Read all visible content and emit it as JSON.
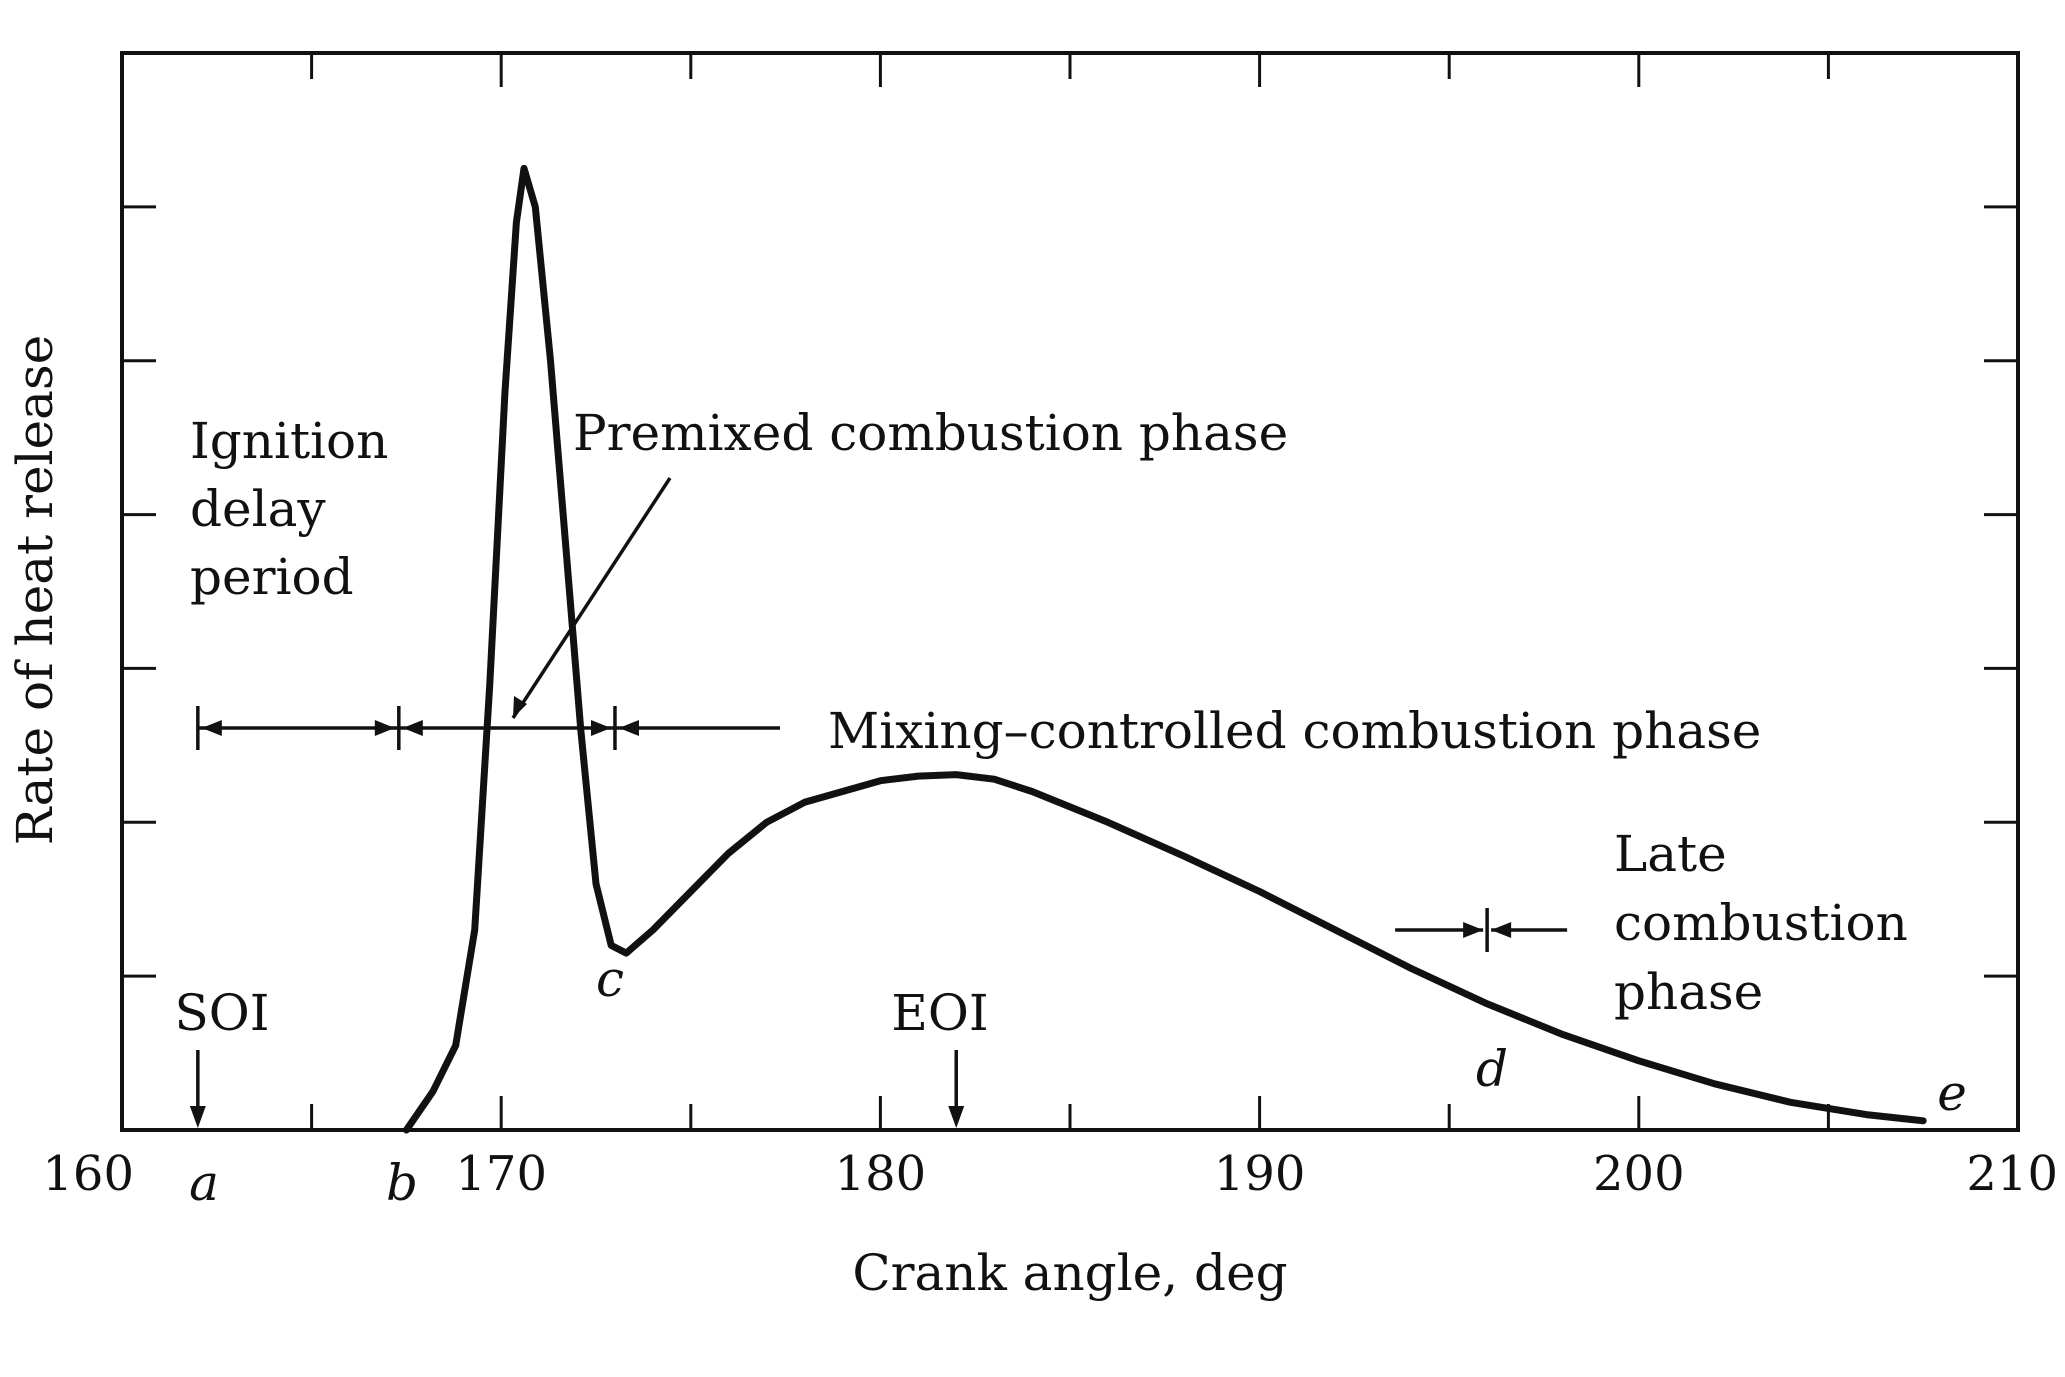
{
  "chart_data": {
    "type": "line",
    "title": "",
    "xlabel": "Crank angle, deg",
    "ylabel": "Rate of heat release",
    "xlim": [
      160,
      210
    ],
    "ylim": [
      0,
      7
    ],
    "x_ticks": [
      160,
      170,
      180,
      190,
      200,
      210
    ],
    "x_minor_ticks": [
      165,
      175,
      185,
      195,
      205
    ],
    "y_tick_count": 7,
    "y_tick_labels_shown": false,
    "grid": false,
    "legend": "none",
    "line_color": "#111111",
    "series": [
      {
        "x": [
          167.5,
          168.2,
          168.8,
          169.3,
          169.7,
          170.1,
          170.4,
          170.6,
          170.9,
          171.3,
          171.7,
          172.1,
          172.5,
          172.9,
          173.3,
          174.0,
          175.0,
          176.0,
          177.0,
          178.0,
          179.0,
          180.0,
          181.0,
          182.0,
          183.0,
          184.0,
          185.0,
          186.0,
          188.0,
          190.0,
          192.0,
          194.0,
          196.0,
          198.0,
          200.0,
          202.0,
          204.0,
          206.0,
          207.5
        ],
        "y": [
          0.0,
          0.25,
          0.55,
          1.3,
          2.9,
          4.8,
          5.9,
          6.25,
          6.0,
          5.0,
          3.8,
          2.6,
          1.6,
          1.2,
          1.15,
          1.3,
          1.55,
          1.8,
          2.0,
          2.13,
          2.2,
          2.27,
          2.3,
          2.31,
          2.28,
          2.2,
          2.1,
          2.0,
          1.78,
          1.55,
          1.3,
          1.05,
          0.82,
          0.62,
          0.45,
          0.3,
          0.18,
          0.1,
          0.06
        ]
      }
    ],
    "markers": [
      {
        "name": "SOI",
        "x": 162.0
      },
      {
        "name": "EOI",
        "x": 182.0
      }
    ],
    "point_letters": [
      {
        "letter": "a",
        "x": 162.0
      },
      {
        "letter": "b",
        "x": 167.3
      },
      {
        "letter": "c",
        "x": 173.0
      },
      {
        "letter": "d",
        "x": 196.0
      },
      {
        "letter": "e",
        "x": 208.3
      }
    ],
    "phase_boundaries": [
      162.0,
      167.3,
      173.0,
      196.0
    ],
    "annotations": {
      "ignition": [
        "Ignition",
        "delay",
        "period"
      ],
      "premixed": "Premixed combustion phase",
      "mixing": "Mixing–controlled combustion phase",
      "late": [
        "Late",
        "combustion",
        "phase"
      ]
    }
  }
}
